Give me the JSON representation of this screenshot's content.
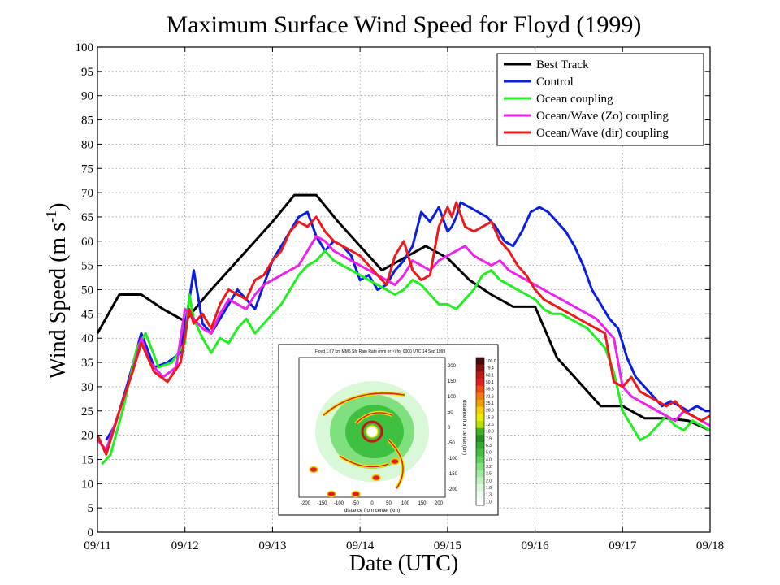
{
  "chart_data": {
    "type": "line",
    "title": "Maximum Surface Wind Speed for Floyd (1999)",
    "xlabel": "Date (UTC)",
    "ylabel_main": "Wind Speed (m s",
    "ylabel_sup": "-1",
    "ylabel_close": ")",
    "xlim": [
      0,
      7
    ],
    "ylim": [
      0,
      100
    ],
    "x_ticks": [
      0,
      1,
      2,
      3,
      4,
      5,
      6,
      7
    ],
    "x_tick_labels": [
      "09/11",
      "09/12",
      "09/13",
      "09/14",
      "09/15",
      "09/16",
      "09/17",
      "09/18"
    ],
    "y_ticks": [
      0,
      5,
      10,
      15,
      20,
      25,
      30,
      35,
      40,
      45,
      50,
      55,
      60,
      65,
      70,
      75,
      80,
      85,
      90,
      95,
      100
    ],
    "grid": true,
    "legend_position": "top-right",
    "series": [
      {
        "name": "Best Track",
        "color": "#000000",
        "x": [
          0,
          0.25,
          0.5,
          0.75,
          1,
          1.25,
          1.5,
          1.75,
          2,
          2.25,
          2.5,
          2.75,
          3,
          3.25,
          3.5,
          3.75,
          4,
          4.25,
          4.5,
          4.75,
          5,
          5.25,
          5.5,
          5.75,
          6,
          6.25,
          6.5,
          6.75,
          7
        ],
        "y": [
          41,
          49,
          49,
          46,
          43.5,
          49,
          54,
          59,
          64,
          69.5,
          69.5,
          64,
          59,
          54,
          56.5,
          59,
          56.5,
          52,
          49,
          46.5,
          46.5,
          36,
          31,
          26,
          26,
          23.5,
          23.5,
          23,
          21
        ]
      },
      {
        "name": "Control",
        "color": "#0a1ee0",
        "x": [
          0.1,
          0.2,
          0.35,
          0.5,
          0.65,
          0.8,
          0.95,
          1.05,
          1.1,
          1.2,
          1.3,
          1.4,
          1.5,
          1.6,
          1.7,
          1.8,
          1.9,
          2.0,
          2.1,
          2.2,
          2.3,
          2.4,
          2.5,
          2.6,
          2.7,
          2.8,
          2.9,
          3.0,
          3.1,
          3.2,
          3.3,
          3.4,
          3.5,
          3.6,
          3.7,
          3.8,
          3.9,
          4.0,
          4.05,
          4.1,
          4.15,
          4.25,
          4.35,
          4.45,
          4.55,
          4.65,
          4.75,
          4.85,
          4.95,
          5.05,
          5.15,
          5.25,
          5.35,
          5.45,
          5.55,
          5.65,
          5.75,
          5.85,
          5.95,
          6.05,
          6.15,
          6.25,
          6.35,
          6.45,
          6.55,
          6.65,
          6.75,
          6.85,
          6.95,
          7.0
        ],
        "y": [
          19,
          22,
          31,
          41,
          34,
          35,
          37,
          48,
          54,
          43,
          41,
          44,
          47,
          50,
          48,
          46,
          51,
          56,
          59,
          62,
          65,
          66,
          61,
          58,
          60,
          59,
          57,
          52,
          53,
          50,
          51,
          54,
          56,
          59,
          66,
          64,
          67,
          62,
          63,
          65,
          68,
          67,
          66,
          65,
          63,
          60,
          59,
          62,
          66,
          67,
          66,
          64,
          62,
          59,
          55,
          50,
          47,
          44,
          42,
          36,
          32,
          30,
          28,
          26,
          27,
          26,
          25,
          26,
          25,
          25
        ]
      },
      {
        "name": "Ocean coupling",
        "color": "#22ee22",
        "x": [
          0.05,
          0.15,
          0.3,
          0.45,
          0.55,
          0.7,
          0.85,
          1.0,
          1.05,
          1.1,
          1.2,
          1.3,
          1.4,
          1.5,
          1.6,
          1.7,
          1.8,
          1.9,
          2.0,
          2.1,
          2.2,
          2.3,
          2.4,
          2.5,
          2.6,
          2.7,
          2.8,
          2.9,
          3.0,
          3.1,
          3.2,
          3.3,
          3.4,
          3.5,
          3.6,
          3.7,
          3.8,
          3.9,
          4.0,
          4.1,
          4.2,
          4.3,
          4.4,
          4.5,
          4.6,
          4.7,
          4.8,
          4.9,
          5.0,
          5.1,
          5.2,
          5.3,
          5.4,
          5.5,
          5.6,
          5.7,
          5.8,
          5.9,
          6.0,
          6.1,
          6.2,
          6.3,
          6.4,
          6.5,
          6.6,
          6.7,
          6.8,
          6.9,
          7.0
        ],
        "y": [
          14,
          16,
          26,
          38,
          41,
          34,
          35,
          39,
          49,
          44,
          40,
          37,
          40,
          39,
          42,
          44,
          41,
          43,
          45,
          47,
          50,
          53,
          55,
          56,
          58,
          56,
          55,
          54,
          53,
          52,
          51,
          50,
          49,
          50,
          52,
          51,
          49,
          47,
          47,
          46,
          48,
          50,
          53,
          54,
          52,
          51,
          50,
          49,
          48,
          46,
          45,
          45,
          44,
          43,
          42,
          40,
          38,
          33,
          25,
          22,
          19,
          20,
          22,
          24,
          22,
          21,
          23,
          22,
          21
        ]
      },
      {
        "name": "Ocean/Wave (Zo) coupling",
        "color": "#ee22ee",
        "x": [
          0,
          0.1,
          0.25,
          0.4,
          0.5,
          0.6,
          0.75,
          0.9,
          1.0,
          1.1,
          1.2,
          1.3,
          1.4,
          1.5,
          1.6,
          1.7,
          1.8,
          1.9,
          2.0,
          2.1,
          2.2,
          2.3,
          2.4,
          2.5,
          2.6,
          2.7,
          2.8,
          2.9,
          3.0,
          3.1,
          3.2,
          3.3,
          3.4,
          3.5,
          3.6,
          3.7,
          3.8,
          3.9,
          4.0,
          4.1,
          4.2,
          4.3,
          4.4,
          4.5,
          4.6,
          4.7,
          4.8,
          4.9,
          5.0,
          5.1,
          5.2,
          5.3,
          5.4,
          5.5,
          5.6,
          5.7,
          5.8,
          5.9,
          6.0,
          6.1,
          6.2,
          6.3,
          6.4,
          6.5,
          6.6,
          6.7,
          6.8,
          6.9,
          7.0
        ],
        "y": [
          19,
          17,
          25,
          33,
          40,
          35,
          32,
          34,
          46,
          44,
          42,
          41,
          45,
          48,
          47,
          46,
          49,
          51,
          52,
          53,
          54,
          55,
          58,
          61,
          60,
          58,
          57,
          56,
          55,
          54,
          53,
          52,
          51,
          53,
          56,
          55,
          54,
          56,
          57,
          58,
          59,
          57,
          56,
          55,
          56,
          54,
          53,
          52,
          51,
          50,
          49,
          48,
          47,
          46,
          45,
          44,
          42,
          40,
          30,
          28,
          27,
          26,
          25,
          24,
          23,
          25,
          24,
          23,
          22
        ]
      },
      {
        "name": "Ocean/Wave (dir) coupling",
        "color": "#ee1a1a",
        "x": [
          0,
          0.1,
          0.25,
          0.4,
          0.5,
          0.65,
          0.8,
          0.95,
          1.05,
          1.1,
          1.2,
          1.3,
          1.4,
          1.5,
          1.6,
          1.7,
          1.8,
          1.9,
          2.0,
          2.1,
          2.2,
          2.3,
          2.4,
          2.5,
          2.6,
          2.7,
          2.8,
          2.9,
          3.0,
          3.1,
          3.2,
          3.3,
          3.4,
          3.5,
          3.6,
          3.7,
          3.8,
          3.9,
          4.0,
          4.05,
          4.1,
          4.2,
          4.3,
          4.4,
          4.5,
          4.6,
          4.7,
          4.8,
          4.9,
          5.0,
          5.1,
          5.2,
          5.3,
          5.4,
          5.5,
          5.6,
          5.7,
          5.8,
          5.9,
          6.0,
          6.1,
          6.2,
          6.3,
          6.4,
          6.5,
          6.6,
          6.7,
          6.8,
          6.9,
          7.0
        ],
        "y": [
          20,
          16,
          25,
          33,
          39,
          33,
          31,
          35,
          46,
          43,
          45,
          42,
          47,
          50,
          49,
          48,
          52,
          53,
          56,
          58,
          62,
          64,
          63,
          65,
          62,
          60,
          59,
          58,
          57,
          55,
          53,
          51,
          57,
          60,
          54,
          52,
          53,
          63,
          67,
          65,
          68,
          63,
          62,
          63,
          64,
          60,
          58,
          55,
          53,
          50,
          48,
          47,
          46,
          45,
          44,
          43,
          42,
          41,
          31,
          30,
          32,
          29,
          28,
          27,
          26,
          27,
          25,
          24,
          23,
          24
        ]
      }
    ]
  },
  "inset": {
    "title": "Floyd 1.67 km MM5 Sfc Rain Rate (mm hr⁻¹) for 0000 UTC 14 Sep 1999",
    "xlabel": "distance from center (km)",
    "ylabel": "distance from center (km)",
    "x_tick_labels": [
      "-200",
      "-150",
      "-100",
      "-50",
      "0",
      "50",
      "100",
      "150",
      "200"
    ],
    "y_tick_labels": [
      "200",
      "150",
      "100",
      "50",
      "0",
      "-50",
      "-100",
      "-150",
      "-200"
    ],
    "colorbar_labels": [
      "100.0",
      "79.4",
      "63.1",
      "50.1",
      "39.8",
      "31.6",
      "25.1",
      "20.0",
      "15.8",
      "12.6",
      "10.0",
      "7.9",
      "6.3",
      "5.0",
      "4.0",
      "3.2",
      "2.5",
      "2.0",
      "1.6",
      "1.3",
      "1.0"
    ],
    "colorbar_colors": [
      "#4a0a0a",
      "#8a1010",
      "#c01818",
      "#e02020",
      "#f04a10",
      "#f07a10",
      "#f0a000",
      "#f0d000",
      "#e8e800",
      "#b8e000",
      "#40b020",
      "#209020",
      "#30a830",
      "#40c040",
      "#60d060",
      "#80e080",
      "#a0e8a0",
      "#c0f0c0",
      "#d8f8d8",
      "#eefcee",
      "#ffffff"
    ]
  }
}
